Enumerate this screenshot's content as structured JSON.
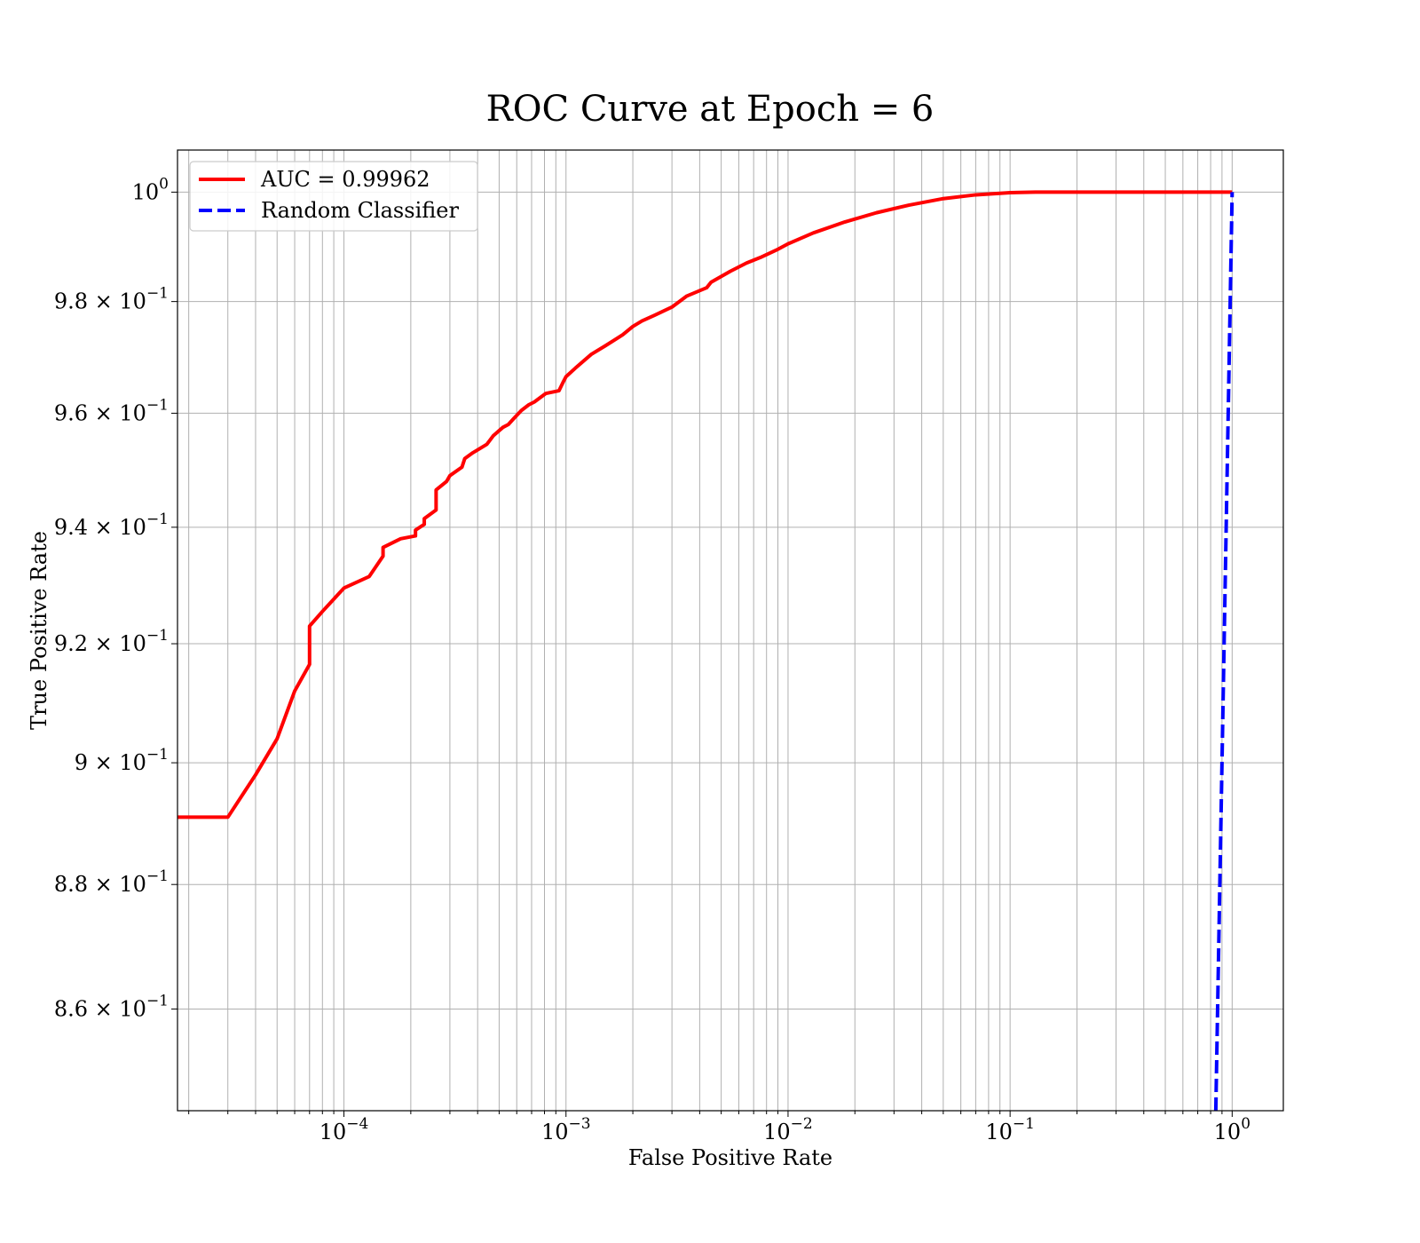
{
  "chart_data": {
    "type": "line",
    "title": "ROC Curve at Epoch = 6",
    "xlabel": "False Positive Rate",
    "ylabel": "True Positive Rate",
    "xscale": "log",
    "yscale": "log",
    "xlim": [
      1.78e-05,
      1.7
    ],
    "ylim": [
      0.844,
      1.0078
    ],
    "grid": true,
    "legend_position": "upper left",
    "x_ticks": [
      {
        "value": 0.0001,
        "base": "10",
        "exp": "−4"
      },
      {
        "value": 0.001,
        "base": "10",
        "exp": "−3"
      },
      {
        "value": 0.01,
        "base": "10",
        "exp": "−2"
      },
      {
        "value": 0.1,
        "base": "10",
        "exp": "−1"
      },
      {
        "value": 1,
        "base": "10",
        "exp": "0"
      }
    ],
    "y_ticks": [
      {
        "value": 1.0,
        "mant": "",
        "base": "10",
        "exp": "0"
      },
      {
        "value": 0.98,
        "mant": "9.8 × ",
        "base": "10",
        "exp": "−1"
      },
      {
        "value": 0.96,
        "mant": "9.6 × ",
        "base": "10",
        "exp": "−1"
      },
      {
        "value": 0.94,
        "mant": "9.4 × ",
        "base": "10",
        "exp": "−1"
      },
      {
        "value": 0.92,
        "mant": "9.2 × ",
        "base": "10",
        "exp": "−1"
      },
      {
        "value": 0.9,
        "mant": "9 × ",
        "base": "10",
        "exp": "−1"
      },
      {
        "value": 0.88,
        "mant": "8.8 × ",
        "base": "10",
        "exp": "−1"
      },
      {
        "value": 0.86,
        "mant": "8.6 × ",
        "base": "10",
        "exp": "−1"
      }
    ],
    "series": [
      {
        "name": "AUC = 0.99962",
        "color": "#ff0000",
        "style": "solid",
        "x": [
          1.78e-05,
          3e-05,
          4e-05,
          5e-05,
          6e-05,
          7e-05,
          7e-05,
          8e-05,
          0.0001,
          0.00013,
          0.00015,
          0.00015,
          0.00018,
          0.00021,
          0.00021,
          0.00023,
          0.00023,
          0.00026,
          0.00026,
          0.00029,
          0.0003,
          0.00034,
          0.00035,
          0.00038,
          0.00044,
          0.00046,
          0.00047,
          0.00052,
          0.00055,
          0.00058,
          0.00063,
          0.00068,
          0.00072,
          0.00081,
          0.00093,
          0.00097,
          0.001,
          0.0011,
          0.0013,
          0.0015,
          0.0018,
          0.002,
          0.0022,
          0.0025,
          0.003,
          0.0035,
          0.0043,
          0.0045,
          0.0055,
          0.0065,
          0.0075,
          0.009,
          0.01,
          0.013,
          0.018,
          0.025,
          0.035,
          0.05,
          0.07,
          0.1,
          0.13,
          0.2,
          0.4,
          0.7,
          1.0
        ],
        "y": [
          0.891,
          0.891,
          0.898,
          0.904,
          0.912,
          0.9165,
          0.923,
          0.9255,
          0.9295,
          0.9315,
          0.935,
          0.9365,
          0.938,
          0.9385,
          0.9395,
          0.9405,
          0.9415,
          0.943,
          0.9465,
          0.948,
          0.949,
          0.9505,
          0.952,
          0.953,
          0.9545,
          0.9555,
          0.956,
          0.9575,
          0.958,
          0.959,
          0.9605,
          0.9615,
          0.962,
          0.9635,
          0.964,
          0.9655,
          0.9665,
          0.968,
          0.9705,
          0.972,
          0.974,
          0.9755,
          0.9765,
          0.9775,
          0.979,
          0.981,
          0.9825,
          0.9835,
          0.9855,
          0.987,
          0.988,
          0.9895,
          0.9905,
          0.9925,
          0.9945,
          0.9962,
          0.9976,
          0.9988,
          0.9995,
          0.9999,
          1.0,
          1.0,
          1.0,
          1.0,
          1.0
        ]
      },
      {
        "name": "Random Classifier",
        "color": "#0000ff",
        "style": "dashed",
        "x": [
          0.844,
          1.0
        ],
        "y": [
          0.844,
          1.0
        ]
      }
    ]
  }
}
